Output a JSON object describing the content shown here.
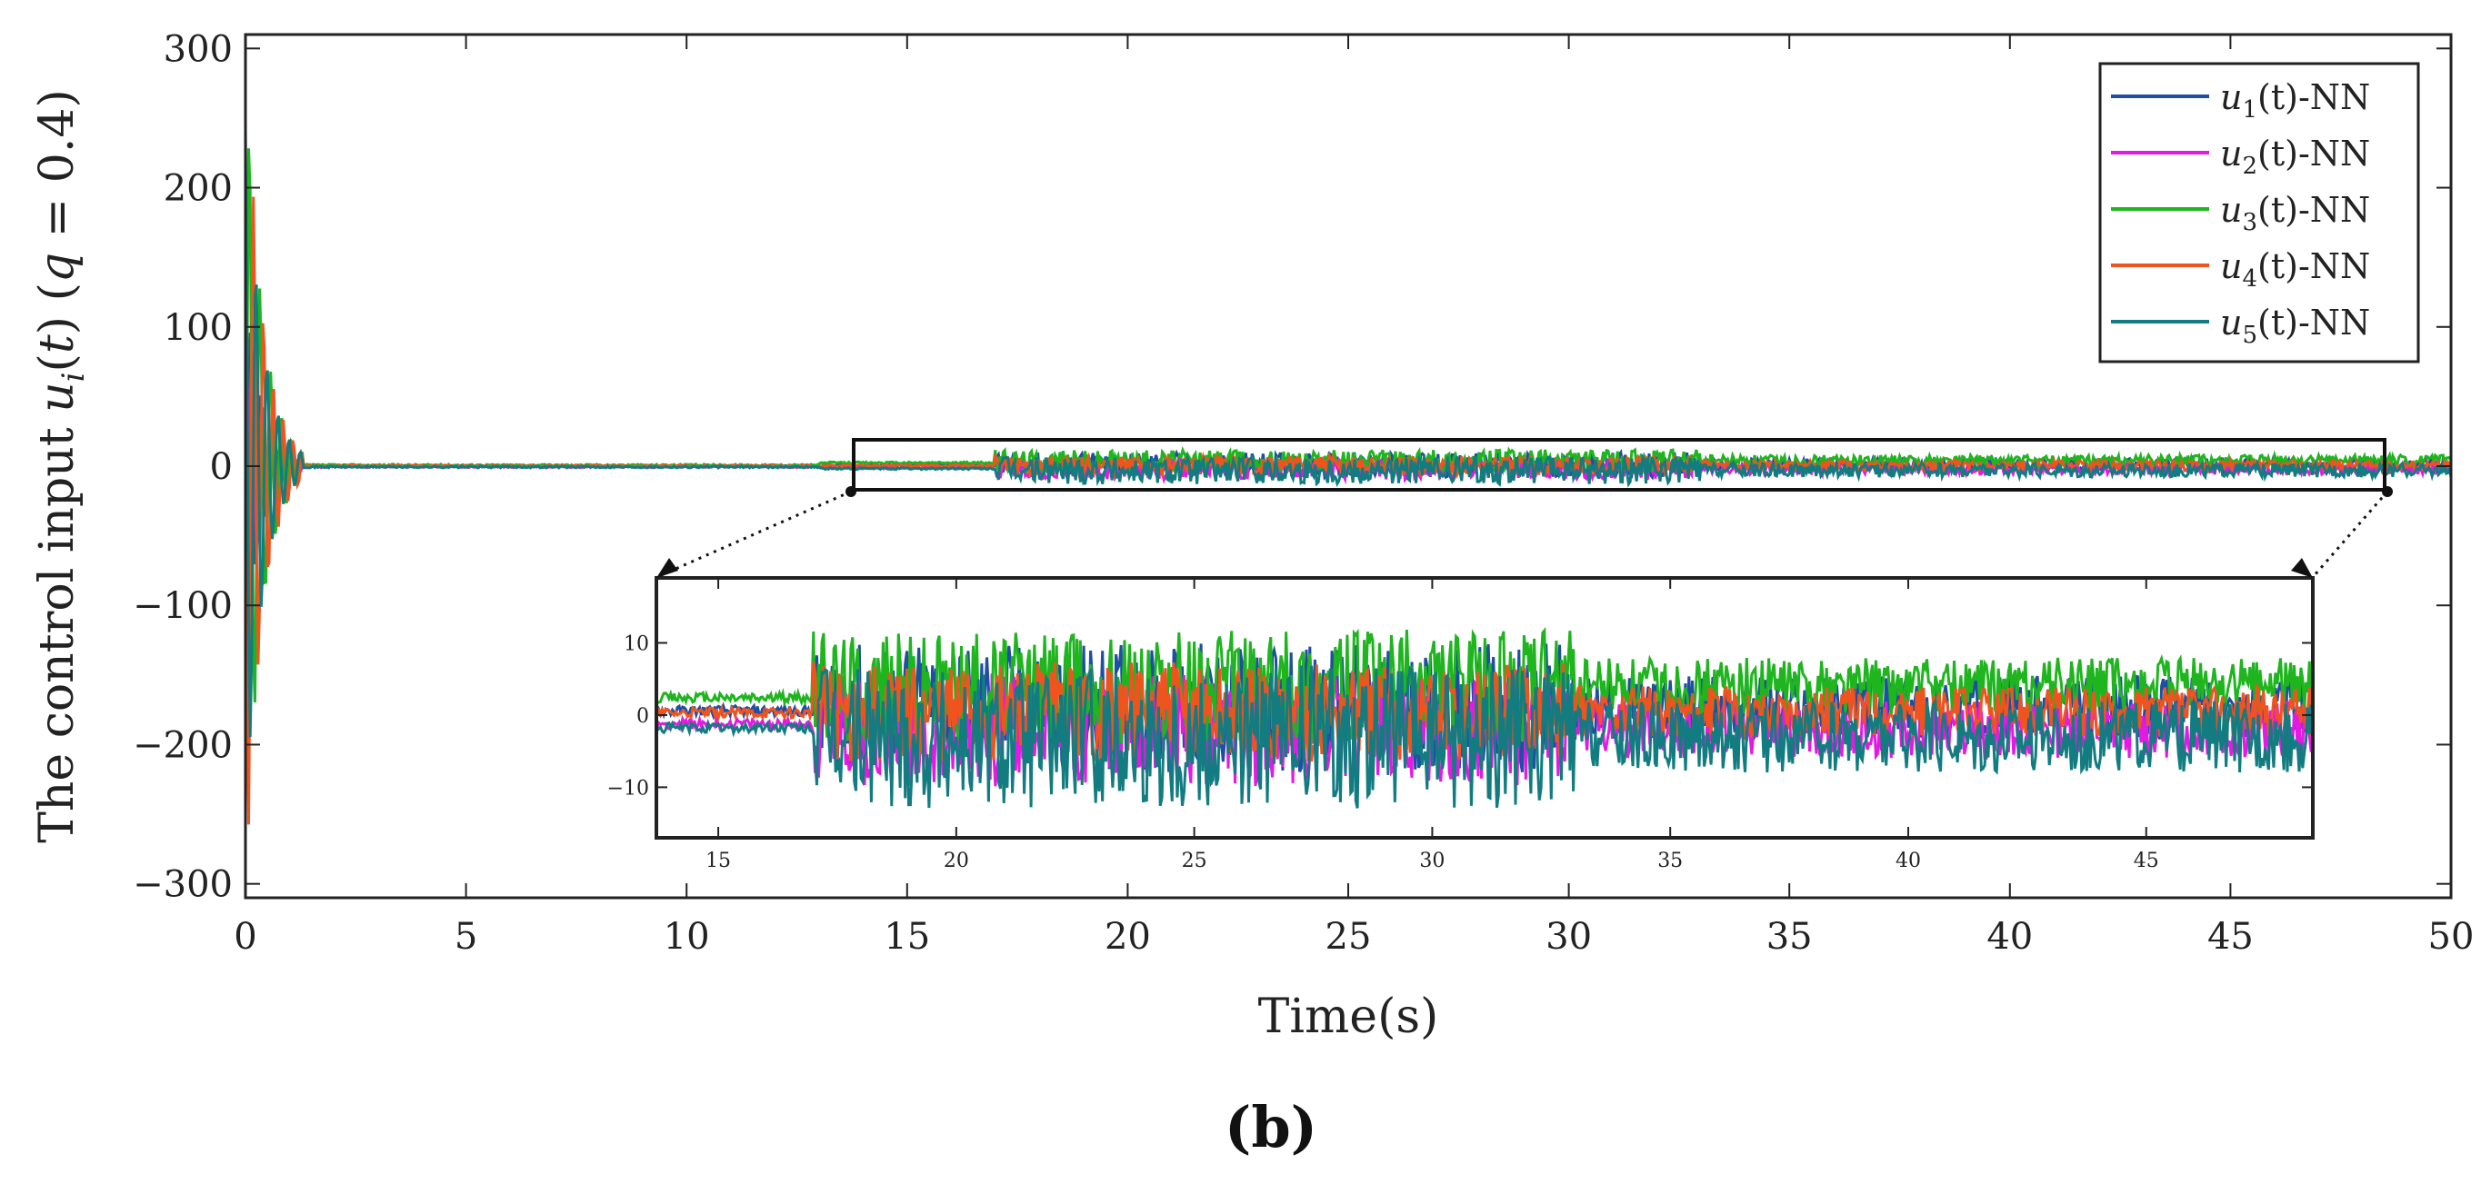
{
  "chart_data": {
    "type": "line",
    "title": "",
    "xlabel": "Time(s)",
    "ylabel": "The control input u_i(t) (q = 0.4)",
    "xlim": [
      0,
      50
    ],
    "ylim": [
      -310,
      310
    ],
    "xticks": [
      0,
      5,
      10,
      15,
      20,
      25,
      30,
      35,
      40,
      45,
      50
    ],
    "xtick_labels": [
      "0",
      "5",
      "10",
      "15",
      "20",
      "25",
      "30",
      "35",
      "40",
      "45",
      "50"
    ],
    "yticks": [
      300,
      200,
      100,
      0,
      -100,
      -200,
      -300
    ],
    "ytick_labels": [
      "300",
      "200",
      "100",
      "0",
      "−100",
      "−200",
      "−300"
    ],
    "legend_position": "top-right",
    "series": [
      {
        "name": "u1(t)-NN",
        "sub": "1",
        "color": "#1f4fa3",
        "seed": 11,
        "spike": 128,
        "amp": 4.5,
        "bias": 1.0
      },
      {
        "name": "u2(t)-NN",
        "sub": "2",
        "color": "#e11be1",
        "seed": 23,
        "spike": 120,
        "amp": 4.0,
        "bias": -2.0
      },
      {
        "name": "u3(t)-NN",
        "sub": "3",
        "color": "#1fb51f",
        "seed": 37,
        "spike": 300,
        "amp": 4.0,
        "bias": 4.0
      },
      {
        "name": "u4(t)-NN",
        "sub": "4",
        "color": "#f0541e",
        "seed": 53,
        "spike": 310,
        "amp": 3.5,
        "bias": 0.5
      },
      {
        "name": "u5(t)-NN",
        "sub": "5",
        "color": "#127c80",
        "seed": 71,
        "spike": 260,
        "amp": 5.0,
        "bias": -3.0
      }
    ],
    "inset": {
      "xlim": [
        13.7,
        48.5
      ],
      "ylim": [
        -17,
        19
      ],
      "xticks": [
        15,
        20,
        25,
        30,
        35,
        40,
        45
      ],
      "xtick_labels": [
        "15",
        "20",
        "25",
        "30",
        "35",
        "40",
        "45"
      ],
      "yticks": [
        10,
        0,
        -10
      ],
      "ytick_labels": [
        "10",
        "0",
        "−10"
      ],
      "zoom_region_x": [
        13.7,
        48.5
      ],
      "zoom_region_y": [
        -17,
        19
      ]
    },
    "figure_label": "(b)"
  }
}
